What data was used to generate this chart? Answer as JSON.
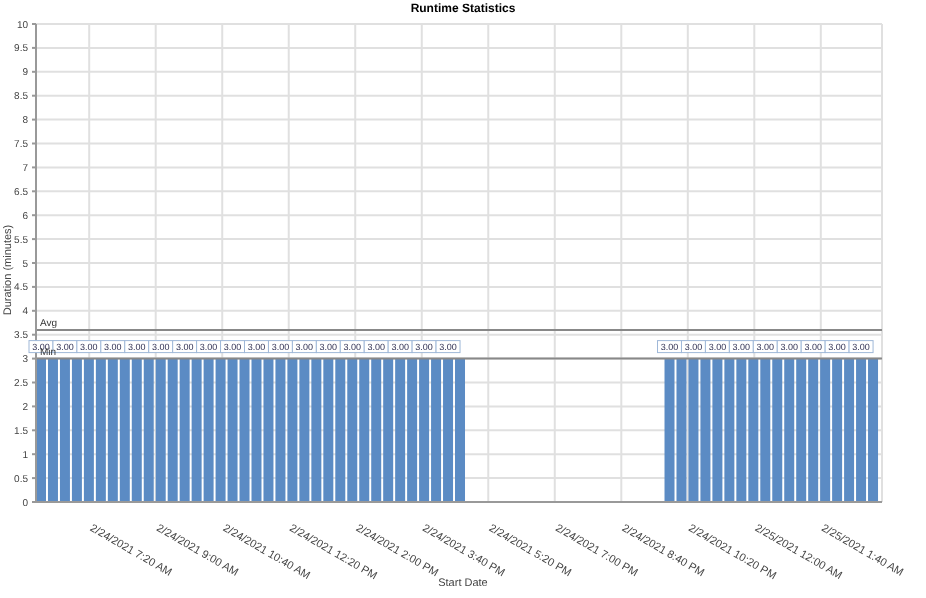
{
  "chart_data": {
    "type": "bar",
    "title": "Runtime Statistics",
    "xlabel": "Start Date",
    "ylabel": "Duration (minutes)",
    "x": [
      "2021-02-24T06:09",
      "2021-02-24T06:27",
      "2021-02-24T06:45",
      "2021-02-24T07:03",
      "2021-02-24T07:21",
      "2021-02-24T07:39",
      "2021-02-24T07:57",
      "2021-02-24T08:15",
      "2021-02-24T08:33",
      "2021-02-24T08:51",
      "2021-02-24T09:09",
      "2021-02-24T09:27",
      "2021-02-24T09:45",
      "2021-02-24T10:03",
      "2021-02-24T10:21",
      "2021-02-24T10:39",
      "2021-02-24T10:57",
      "2021-02-24T11:15",
      "2021-02-24T11:33",
      "2021-02-24T11:51",
      "2021-02-24T12:09",
      "2021-02-24T12:27",
      "2021-02-24T12:45",
      "2021-02-24T13:03",
      "2021-02-24T13:21",
      "2021-02-24T13:39",
      "2021-02-24T13:57",
      "2021-02-24T14:15",
      "2021-02-24T14:33",
      "2021-02-24T14:51",
      "2021-02-24T15:09",
      "2021-02-24T15:27",
      "2021-02-24T15:45",
      "2021-02-24T16:03",
      "2021-02-24T16:21",
      "2021-02-24T16:39",
      "2021-02-24T21:54",
      "2021-02-24T22:12",
      "2021-02-24T22:30",
      "2021-02-24T22:48",
      "2021-02-24T23:06",
      "2021-02-24T23:24",
      "2021-02-24T23:42",
      "2021-02-25T00:00",
      "2021-02-25T00:18",
      "2021-02-25T00:36",
      "2021-02-25T00:54",
      "2021-02-25T01:12",
      "2021-02-25T01:30",
      "2021-02-25T01:48",
      "2021-02-25T02:06",
      "2021-02-25T02:24",
      "2021-02-25T02:42",
      "2021-02-25T03:00"
    ],
    "values": [
      3,
      3,
      3,
      3,
      3,
      3,
      3,
      3,
      3,
      3,
      3,
      3,
      3,
      3,
      3,
      3,
      3,
      3,
      3,
      3,
      3,
      3,
      3,
      3,
      3,
      3,
      3,
      3,
      3,
      3,
      3,
      3,
      3,
      3,
      3,
      3,
      3,
      3,
      3,
      3,
      3,
      3,
      3,
      3,
      3,
      3,
      3,
      3,
      3,
      3,
      3,
      3,
      3,
      3
    ],
    "value_labels": [
      "3.00",
      null,
      "3.00",
      null,
      "3.00",
      null,
      "3.00",
      null,
      "3.00",
      null,
      "3.00",
      null,
      "3.00",
      null,
      "3.00",
      null,
      "3.00",
      null,
      "3.00",
      null,
      "3.00",
      null,
      "3.00",
      null,
      "3.00",
      null,
      "3.00",
      null,
      "3.00",
      null,
      "3.00",
      null,
      "3.00",
      null,
      "3.00",
      null,
      "3.00",
      null,
      "3.00",
      null,
      "3.00",
      null,
      "3.00",
      null,
      "3.00",
      null,
      "3.00",
      null,
      "3.00",
      null,
      "3.00",
      null,
      "3.00",
      null
    ],
    "color": "#5b8bc4",
    "xlim": [
      "2021-02-24T06:00",
      "2021-02-25T03:12"
    ],
    "xticks": [
      {
        "value": "2021-02-24T07:20",
        "label": "2/24/2021 7:20 AM"
      },
      {
        "value": "2021-02-24T09:00",
        "label": "2/24/2021 9:00 AM"
      },
      {
        "value": "2021-02-24T10:40",
        "label": "2/24/2021 10:40 AM"
      },
      {
        "value": "2021-02-24T12:20",
        "label": "2/24/2021 12:20 PM"
      },
      {
        "value": "2021-02-24T14:00",
        "label": "2/24/2021 2:00 PM"
      },
      {
        "value": "2021-02-24T15:40",
        "label": "2/24/2021 3:40 PM"
      },
      {
        "value": "2021-02-24T17:20",
        "label": "2/24/2021 5:20 PM"
      },
      {
        "value": "2021-02-24T19:00",
        "label": "2/24/2021 7:00 PM"
      },
      {
        "value": "2021-02-24T20:40",
        "label": "2/24/2021 8:40 PM"
      },
      {
        "value": "2021-02-24T22:20",
        "label": "2/24/2021 10:20 PM"
      },
      {
        "value": "2021-02-25T00:00",
        "label": "2/25/2021 12:00 AM"
      },
      {
        "value": "2021-02-25T01:40",
        "label": "2/25/2021 1:40 AM"
      }
    ],
    "ylim": [
      0,
      10
    ],
    "yticks": [
      0,
      0.5,
      1,
      1.5,
      2,
      2.5,
      3,
      3.5,
      4,
      4.5,
      5,
      5.5,
      6,
      6.5,
      7,
      7.5,
      8,
      8.5,
      9,
      9.5,
      10
    ],
    "ref_lines": [
      {
        "axis": "y",
        "value": 3.6,
        "label": "Avg",
        "color": "#888888"
      },
      {
        "axis": "y",
        "value": 3,
        "label": "Min",
        "color": "#888888"
      }
    ],
    "grid": true
  }
}
